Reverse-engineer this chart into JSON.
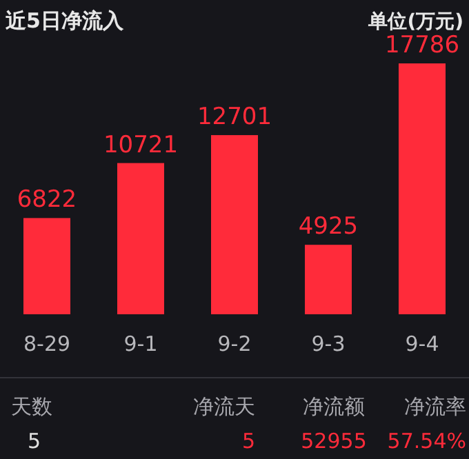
{
  "chart_data": {
    "type": "bar",
    "title": "近5日净流入",
    "subtitle": "单位(万元)",
    "categories": [
      "8-29",
      "9-1",
      "9-2",
      "9-3",
      "9-4"
    ],
    "values": [
      6822,
      10721,
      12701,
      4925,
      17786
    ],
    "color": "#ff2b3a",
    "data_labels": true,
    "annotations": [
      "天数",
      "净流天",
      "净流额",
      "净流率",
      "5",
      "5",
      "52955",
      "57.54%"
    ]
  }
}
